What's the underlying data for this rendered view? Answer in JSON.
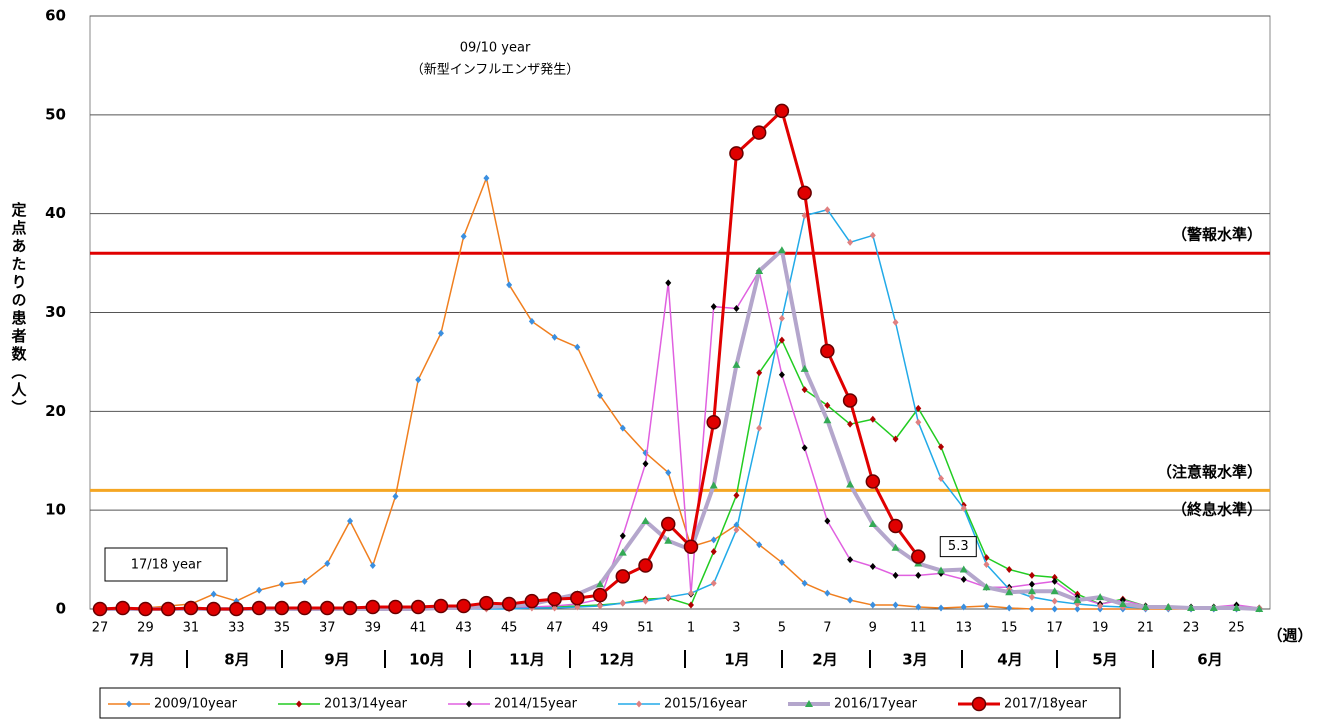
{
  "chart_data": {
    "type": "line",
    "y_axis_label": "定点あたりの患者数（人）",
    "x_axis_unit": "（週）",
    "categories": [
      "27",
      null,
      "29",
      null,
      "31",
      null,
      "33",
      null,
      "35",
      null,
      "37",
      null,
      "39",
      null,
      "41",
      null,
      "43",
      null,
      "45",
      null,
      "47",
      null,
      "49",
      null,
      "51",
      null,
      "1",
      null,
      "3",
      null,
      "5",
      null,
      "7",
      null,
      "9",
      null,
      "11",
      null,
      "13",
      null,
      "15",
      null,
      "17",
      null,
      "19",
      null,
      "21",
      null,
      "23",
      null,
      "25",
      null
    ],
    "months": [
      "7月",
      "8月",
      "9月",
      "10月",
      "11月",
      "12月",
      "1月",
      "2月",
      "3月",
      "4月",
      "5月",
      "6月"
    ],
    "ylim": [
      0,
      60
    ],
    "yticks": [
      0,
      10,
      20,
      30,
      40,
      50,
      60
    ],
    "grid": true,
    "reference_lines": [
      {
        "label": "（警報水準）",
        "value": 36,
        "color": "#e00000"
      },
      {
        "label": "（注意報水準）",
        "value": 12,
        "color": "#f5a623"
      }
    ],
    "level_labels": [
      {
        "label": "（終息水準）",
        "value": 10
      }
    ],
    "annotations": [
      "09/10 year",
      "（新型インフルエンザ発生）",
      "17/18 year"
    ],
    "legend": "bottom",
    "series": [
      {
        "name": "2009/10year",
        "color": "#f07f1f",
        "marker": "diamond",
        "marker_color": "#3a8fe0",
        "values": [
          0,
          0.1,
          0.1,
          0.3,
          0.5,
          1.5,
          0.8,
          1.9,
          2.5,
          2.8,
          4.6,
          8.9,
          4.4,
          11.4,
          23.2,
          27.9,
          37.7,
          43.6,
          32.8,
          29.1,
          27.5,
          26.5,
          21.6,
          18.3,
          15.8,
          13.8,
          6.3,
          7.0,
          8.5,
          6.5,
          4.7,
          2.6,
          1.6,
          0.9,
          0.4,
          0.4,
          0.2,
          0.1,
          0.2,
          0.3,
          0.1,
          0,
          0,
          0,
          0,
          0,
          0,
          0,
          0,
          0,
          0,
          0
        ]
      },
      {
        "name": "2013/14year",
        "color": "#22cc22",
        "marker": "diamond",
        "marker_color": "#b00000",
        "values": [
          0,
          0,
          0,
          0,
          0,
          0,
          0,
          0,
          0,
          0,
          0,
          0,
          0,
          0,
          0.1,
          0.1,
          0.1,
          0.1,
          0.1,
          0.2,
          0.2,
          0.3,
          0.4,
          0.6,
          1.0,
          1.1,
          0.4,
          5.8,
          11.5,
          23.9,
          27.2,
          22.2,
          20.6,
          18.7,
          19.2,
          17.2,
          20.3,
          16.4,
          10.5,
          5.2,
          4.0,
          3.4,
          3.2,
          1.5,
          0.5,
          1.0,
          0.3,
          0.2,
          0.1,
          0.1,
          0.1,
          0.1
        ]
      },
      {
        "name": "2014/15year",
        "color": "#e060e0",
        "marker": "diamond",
        "marker_color": "#000000",
        "values": [
          0,
          0,
          0,
          0,
          0,
          0,
          0,
          0,
          0,
          0,
          0,
          0,
          0,
          0,
          0,
          0.1,
          0.1,
          0.1,
          0.2,
          0.2,
          0.3,
          0.5,
          1.0,
          7.4,
          14.7,
          33.0,
          1.5,
          30.6,
          30.4,
          34.2,
          23.7,
          16.3,
          8.9,
          5.0,
          4.3,
          3.4,
          3.4,
          3.6,
          3.0,
          2.2,
          2.2,
          2.5,
          2.8,
          1.2,
          0.5,
          0.9,
          0.3,
          0.2,
          0.2,
          0.2,
          0.4,
          0.1
        ]
      },
      {
        "name": "2015/16year",
        "color": "#22aae8",
        "marker": "diamond",
        "marker_color": "#e08080",
        "values": [
          0,
          0,
          0,
          0,
          0,
          0,
          0,
          0,
          0,
          0,
          0,
          0,
          0,
          0,
          0,
          0,
          0,
          0,
          0,
          0.1,
          0.1,
          0.2,
          0.3,
          0.6,
          0.8,
          1.2,
          1.6,
          2.6,
          8.0,
          18.3,
          29.4,
          39.8,
          40.4,
          37.1,
          37.8,
          29.0,
          18.9,
          13.2,
          10.2,
          4.5,
          2.0,
          1.2,
          0.8,
          0.5,
          0.3,
          0.2,
          0.1,
          0.1,
          0.1,
          0.1,
          0.1,
          0.1
        ]
      },
      {
        "name": "2016/17year",
        "color": "#b4a6cc",
        "marker": "triangle",
        "marker_color": "#33aa55",
        "values": [
          0,
          0,
          0,
          0,
          0,
          0,
          0,
          0,
          0,
          0,
          0,
          0,
          0,
          0,
          0,
          0.1,
          0.1,
          0.2,
          0.3,
          0.5,
          1.0,
          1.5,
          2.5,
          5.7,
          8.9,
          6.9,
          6.0,
          12.5,
          24.7,
          34.2,
          36.3,
          24.3,
          19.1,
          12.6,
          8.6,
          6.2,
          4.6,
          3.9,
          4.0,
          2.2,
          1.7,
          1.8,
          1.8,
          0.9,
          1.2,
          0.5,
          0.2,
          0.2,
          0.1,
          0.1,
          0.1,
          0
        ]
      },
      {
        "name": "2017/18year",
        "color": "#e00000",
        "marker": "circle",
        "marker_color": "#e00000",
        "values": [
          0,
          0.1,
          0,
          0,
          0.1,
          0,
          0,
          0.1,
          0.1,
          0.1,
          0.1,
          0.1,
          0.2,
          0.2,
          0.2,
          0.3,
          0.3,
          0.6,
          0.5,
          0.8,
          1.0,
          1.1,
          1.4,
          3.3,
          4.4,
          8.6,
          6.3,
          18.9,
          46.1,
          48.2,
          50.4,
          42.1,
          26.1,
          21.1,
          12.9,
          8.4,
          5.3,
          null,
          null,
          null,
          null,
          null,
          null,
          null,
          null,
          null,
          null,
          null,
          null,
          null,
          null,
          null
        ],
        "value_labels": [
          null,
          null,
          null,
          null,
          null,
          null,
          null,
          null,
          null,
          null,
          null,
          null,
          null,
          null,
          null,
          null,
          null,
          null,
          null,
          null,
          null,
          null,
          null,
          null,
          null,
          null,
          null,
          null,
          null,
          null,
          null,
          null,
          null,
          null,
          null,
          null,
          "5.3",
          null,
          null,
          null,
          null,
          null,
          null,
          null,
          null,
          null,
          null,
          null,
          null,
          null,
          null,
          null
        ]
      }
    ]
  }
}
